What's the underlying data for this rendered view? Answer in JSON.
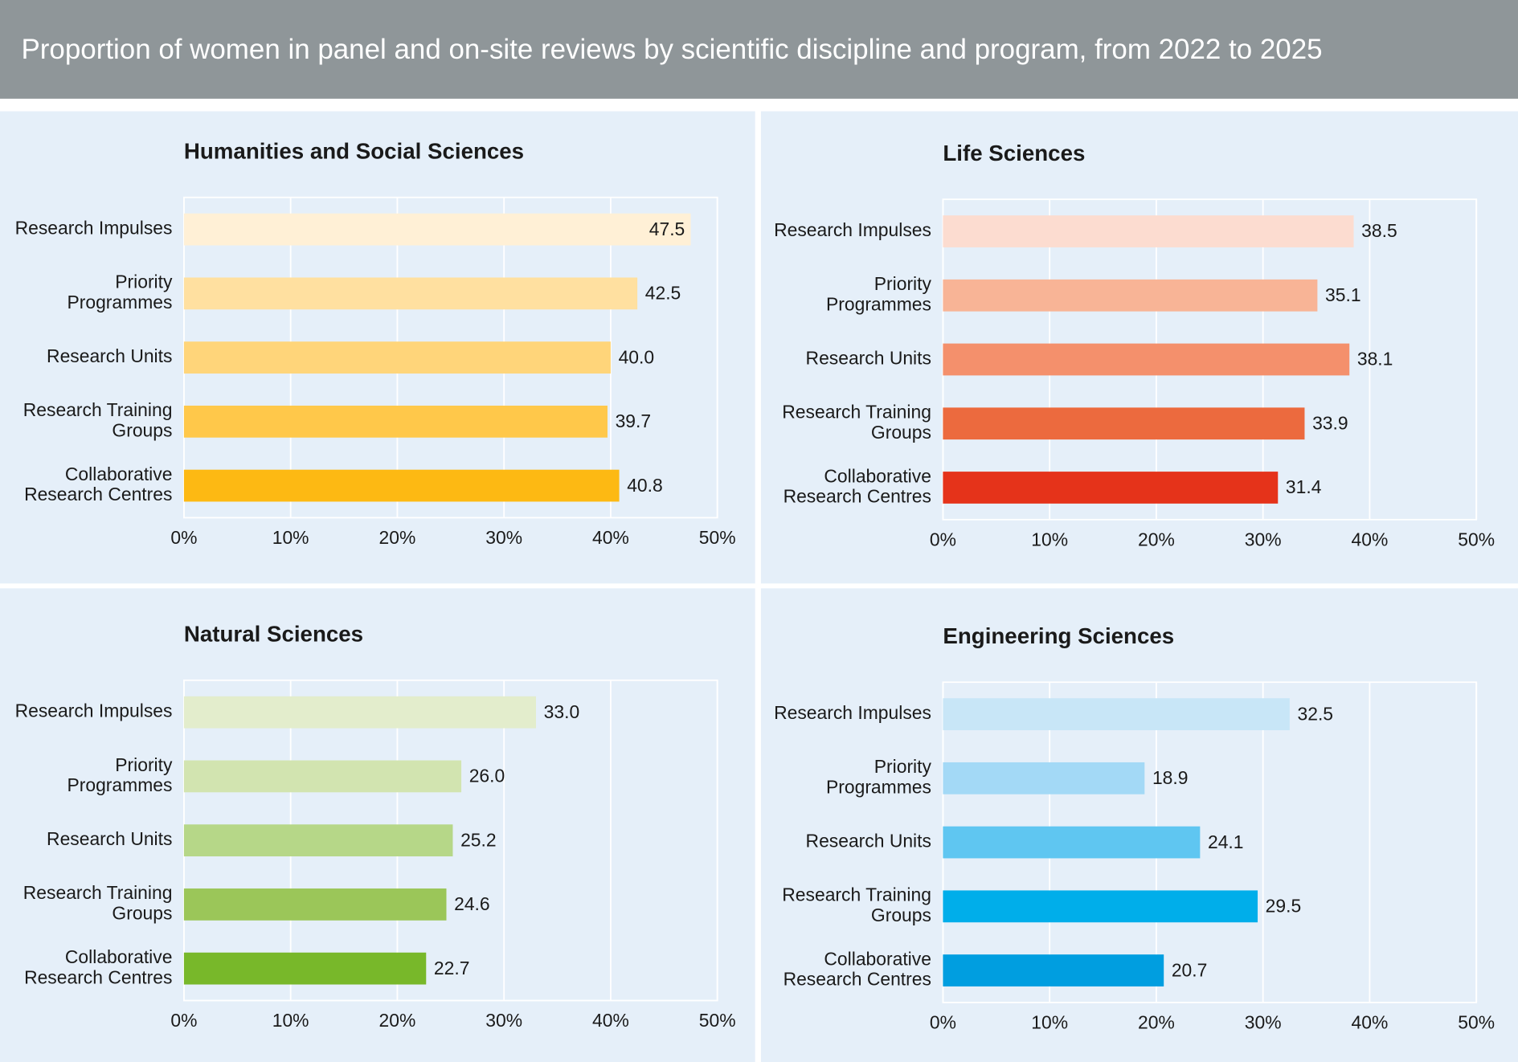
{
  "header": {
    "title": "Proportion of women in panel and on-site reviews by scientific discipline and program, from 2022 to 2025"
  },
  "chart_data": [
    {
      "type": "bar",
      "orientation": "horizontal",
      "title": "Humanities and Social Sciences",
      "categories": [
        "Research Impulses",
        "Priority Programmes",
        "Research Units",
        "Research Training Groups",
        "Collaborative Research Centres"
      ],
      "values": [
        47.5,
        42.5,
        40.0,
        39.7,
        40.8
      ],
      "value_labels": [
        "47.5",
        "42.5",
        "40.0",
        "39.7",
        "40.8"
      ],
      "colors": [
        "#fff0d6",
        "#ffe0a0",
        "#ffd57a",
        "#ffc84a",
        "#fdb913"
      ],
      "xlim": [
        0,
        50
      ],
      "xticks": [
        {
          "value": 0,
          "label": "0%"
        },
        {
          "value": 10,
          "label": "10%"
        },
        {
          "value": 20,
          "label": "20%"
        },
        {
          "value": 30,
          "label": "30%"
        },
        {
          "value": 40,
          "label": "40%"
        },
        {
          "value": 50,
          "label": "50%"
        }
      ],
      "grid": true
    },
    {
      "type": "bar",
      "orientation": "horizontal",
      "title": "Life Sciences",
      "categories": [
        "Research Impulses",
        "Priority Programmes",
        "Research Units",
        "Research Training Groups",
        "Collaborative Research Centres"
      ],
      "values": [
        38.5,
        35.1,
        38.1,
        33.9,
        31.4
      ],
      "value_labels": [
        "38.5",
        "35.1",
        "38.1",
        "33.9",
        "31.4"
      ],
      "colors": [
        "#fcdcd0",
        "#f8b496",
        "#f4906c",
        "#ec6a3e",
        "#e5331a"
      ],
      "xlim": [
        0,
        50
      ],
      "xticks": [
        {
          "value": 0,
          "label": "0%"
        },
        {
          "value": 10,
          "label": "10%"
        },
        {
          "value": 20,
          "label": "20%"
        },
        {
          "value": 30,
          "label": "30%"
        },
        {
          "value": 40,
          "label": "40%"
        },
        {
          "value": 50,
          "label": "50%"
        }
      ],
      "grid": true
    },
    {
      "type": "bar",
      "orientation": "horizontal",
      "title": "Natural Sciences",
      "categories": [
        "Research Impulses",
        "Priority Programmes",
        "Research Units",
        "Research Training Groups",
        "Collaborative Research Centres"
      ],
      "values": [
        33.0,
        26.0,
        25.2,
        24.6,
        22.7
      ],
      "value_labels": [
        "33.0",
        "26.0",
        "25.2",
        "24.6",
        "22.7"
      ],
      "colors": [
        "#e3edcc",
        "#d2e4b0",
        "#b6d788",
        "#9bc659",
        "#78b82a"
      ],
      "xlim": [
        0,
        50
      ],
      "xticks": [
        {
          "value": 0,
          "label": "0%"
        },
        {
          "value": 10,
          "label": "10%"
        },
        {
          "value": 20,
          "label": "20%"
        },
        {
          "value": 30,
          "label": "30%"
        },
        {
          "value": 40,
          "label": "40%"
        },
        {
          "value": 50,
          "label": "50%"
        }
      ],
      "grid": true
    },
    {
      "type": "bar",
      "orientation": "horizontal",
      "title": "Engineering Sciences",
      "categories": [
        "Research Impulses",
        "Priority Programmes",
        "Research Units",
        "Research Training Groups",
        "Collaborative Research Centres"
      ],
      "values": [
        32.5,
        18.9,
        24.1,
        29.5,
        20.7
      ],
      "value_labels": [
        "32.5",
        "18.9",
        "24.1",
        "29.5",
        "20.7"
      ],
      "colors": [
        "#c8e6f7",
        "#a3d9f6",
        "#5fc6f1",
        "#00aeea",
        "#009ee0"
      ],
      "xlim": [
        0,
        50
      ],
      "xticks": [
        {
          "value": 0,
          "label": "0%"
        },
        {
          "value": 10,
          "label": "10%"
        },
        {
          "value": 20,
          "label": "20%"
        },
        {
          "value": 30,
          "label": "30%"
        },
        {
          "value": 40,
          "label": "40%"
        },
        {
          "value": 50,
          "label": "50%"
        }
      ],
      "grid": true
    }
  ]
}
